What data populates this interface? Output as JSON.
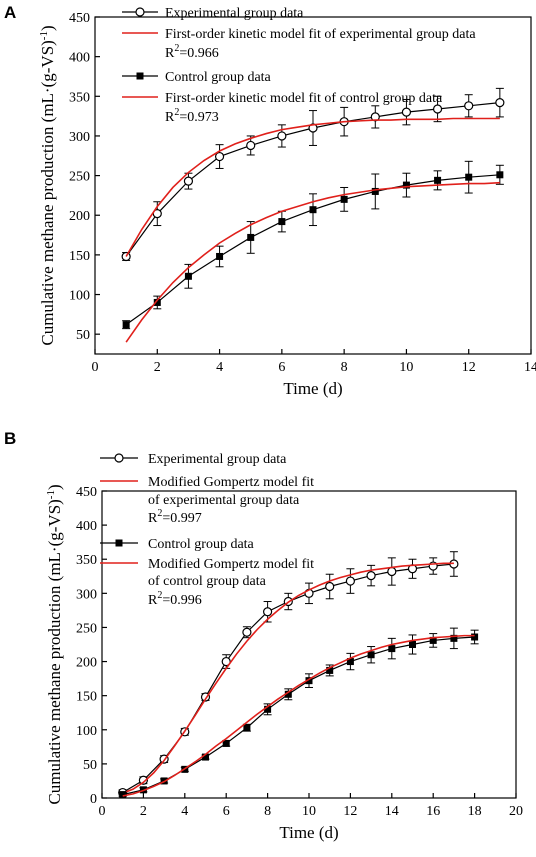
{
  "chart_data": [
    {
      "panel": "A",
      "type": "line",
      "xlabel": "Time (d)",
      "ylabel": "Cumulative methane production (mL·(g-VS)⁻¹)",
      "xlim": [
        0,
        14
      ],
      "ylim": [
        25,
        450
      ],
      "xticks": [
        0,
        2,
        4,
        6,
        8,
        10,
        12,
        14
      ],
      "yticks": [
        50,
        100,
        150,
        200,
        250,
        300,
        350,
        400,
        450
      ],
      "grid": false,
      "legend_position": "top-left",
      "legend": [
        {
          "text": "Experimental group data",
          "sub": null
        },
        {
          "text": "First-order kinetic model fit of experimental group data",
          "sub": "R²=0.966"
        },
        {
          "text": "Control group data",
          "sub": null
        },
        {
          "text": "First-order kinetic model fit of control group data",
          "sub": "R²=0.973"
        }
      ],
      "series": [
        {
          "name": "Experimental group data",
          "kind": "data",
          "marker": "open-circle",
          "color": "#000000",
          "x": [
            1,
            2,
            3,
            4,
            5,
            6,
            7,
            8,
            9,
            10,
            11,
            12,
            13
          ],
          "y": [
            148,
            202,
            243,
            274,
            288,
            300,
            310,
            318,
            324,
            330,
            334,
            338,
            342
          ],
          "err": [
            5,
            15,
            10,
            15,
            12,
            14,
            22,
            18,
            14,
            16,
            16,
            14,
            18
          ]
        },
        {
          "name": "First-order kinetic model fit of experimental group data",
          "kind": "fit",
          "color": "#e0201b",
          "x": [
            1,
            1.5,
            2,
            2.5,
            3,
            3.5,
            4,
            4.5,
            5,
            5.5,
            6,
            6.5,
            7,
            7.5,
            8,
            8.5,
            9,
            9.5,
            10,
            10.5,
            11,
            11.5,
            12,
            12.5,
            13
          ],
          "y": [
            148,
            182,
            211,
            235,
            254,
            269,
            281,
            290,
            297,
            303,
            308,
            311,
            314,
            316,
            318,
            319,
            320,
            320,
            321,
            321,
            321,
            322,
            322,
            322,
            322
          ]
        },
        {
          "name": "Control group data",
          "kind": "data",
          "marker": "filled-square",
          "color": "#000000",
          "x": [
            1,
            2,
            3,
            4,
            5,
            6,
            7,
            8,
            9,
            10,
            11,
            12,
            13
          ],
          "y": [
            62,
            90,
            123,
            148,
            172,
            192,
            207,
            220,
            230,
            238,
            244,
            248,
            251
          ],
          "err": [
            5,
            8,
            15,
            13,
            20,
            13,
            20,
            15,
            22,
            15,
            12,
            20,
            12
          ]
        },
        {
          "name": "First-order kinetic model fit of control group data",
          "kind": "fit",
          "color": "#e0201b",
          "x": [
            1,
            1.5,
            2,
            2.5,
            3,
            3.5,
            4,
            4.5,
            5,
            5.5,
            6,
            6.5,
            7,
            7.5,
            8,
            8.5,
            9,
            9.5,
            10,
            10.5,
            11,
            11.5,
            12,
            12.5,
            13
          ],
          "y": [
            40,
            68,
            93,
            115,
            134,
            150,
            165,
            177,
            188,
            197,
            205,
            211,
            217,
            222,
            226,
            229,
            232,
            234,
            236,
            237,
            238,
            239,
            240,
            240,
            241
          ]
        }
      ]
    },
    {
      "panel": "B",
      "type": "line",
      "xlabel": "Time (d)",
      "ylabel": "Cumulative methane production (mL·(g-VS)⁻¹)",
      "xlim": [
        0,
        20
      ],
      "ylim": [
        0,
        450
      ],
      "xticks": [
        0,
        2,
        4,
        6,
        8,
        10,
        12,
        14,
        16,
        18,
        20
      ],
      "yticks": [
        0,
        50,
        100,
        150,
        200,
        250,
        300,
        350,
        400,
        450
      ],
      "grid": false,
      "legend_position": "top-left",
      "legend": [
        {
          "text": "Experimental group data",
          "sub": null
        },
        {
          "text": "Modified Gompertz model fit",
          "text2": "of experimental group data",
          "sub": "R²=0.997"
        },
        {
          "text": "Control group data",
          "sub": null
        },
        {
          "text": "Modified Gompertz model fit",
          "text2": "of control group data",
          "sub": "R²=0.996"
        }
      ],
      "series": [
        {
          "name": "Experimental group data",
          "kind": "data",
          "marker": "open-circle",
          "color": "#000000",
          "x": [
            1,
            2,
            3,
            4,
            5,
            6,
            7,
            8,
            9,
            10,
            11,
            12,
            13,
            14,
            15,
            16,
            17
          ],
          "y": [
            8,
            26,
            57,
            97,
            148,
            200,
            243,
            273,
            288,
            300,
            310,
            318,
            326,
            332,
            336,
            340,
            343
          ],
          "err": [
            4,
            5,
            5,
            5,
            5,
            10,
            8,
            15,
            12,
            15,
            18,
            18,
            15,
            20,
            14,
            12,
            18
          ]
        },
        {
          "name": "Modified Gompertz model fit of experimental group data",
          "kind": "fit",
          "color": "#e0201b",
          "x": [
            1,
            1.5,
            2,
            2.5,
            3,
            3.5,
            4,
            4.5,
            5,
            5.5,
            6,
            6.5,
            7,
            7.5,
            8,
            8.5,
            9,
            9.5,
            10,
            10.5,
            11,
            11.5,
            12,
            12.5,
            13,
            13.5,
            14,
            14.5,
            15,
            15.5,
            16,
            16.5,
            17
          ],
          "y": [
            7,
            13,
            23,
            37,
            55,
            76,
            98,
            121,
            145,
            168,
            190,
            211,
            230,
            247,
            262,
            275,
            287,
            297,
            305,
            312,
            318,
            323,
            327,
            331,
            334,
            336,
            338,
            340,
            341,
            342,
            343,
            344,
            344
          ]
        },
        {
          "name": "Control group data",
          "kind": "data",
          "marker": "filled-square",
          "color": "#000000",
          "x": [
            1,
            2,
            3,
            4,
            5,
            6,
            7,
            8,
            9,
            10,
            11,
            12,
            13,
            14,
            15,
            16,
            17,
            18
          ],
          "y": [
            5,
            12,
            25,
            42,
            60,
            80,
            103,
            130,
            152,
            172,
            187,
            200,
            210,
            219,
            225,
            231,
            234,
            236
          ],
          "err": [
            3,
            3,
            3,
            3,
            3,
            4,
            5,
            8,
            8,
            10,
            8,
            12,
            12,
            15,
            14,
            10,
            15,
            10
          ]
        },
        {
          "name": "Modified Gompertz model fit of control group data",
          "kind": "fit",
          "color": "#e0201b",
          "x": [
            1,
            1.5,
            2,
            2.5,
            3,
            3.5,
            4,
            4.5,
            5,
            5.5,
            6,
            6.5,
            7,
            7.5,
            8,
            8.5,
            9,
            9.5,
            10,
            10.5,
            11,
            11.5,
            12,
            12.5,
            13,
            13.5,
            14,
            14.5,
            15,
            15.5,
            16,
            16.5,
            17,
            17.5,
            18
          ],
          "y": [
            3,
            6,
            11,
            17,
            24,
            33,
            43,
            53,
            64,
            76,
            87,
            99,
            111,
            123,
            134,
            145,
            155,
            165,
            174,
            183,
            191,
            198,
            205,
            211,
            216,
            221,
            225,
            228,
            231,
            233,
            235,
            236,
            237,
            238,
            238
          ]
        }
      ]
    }
  ]
}
